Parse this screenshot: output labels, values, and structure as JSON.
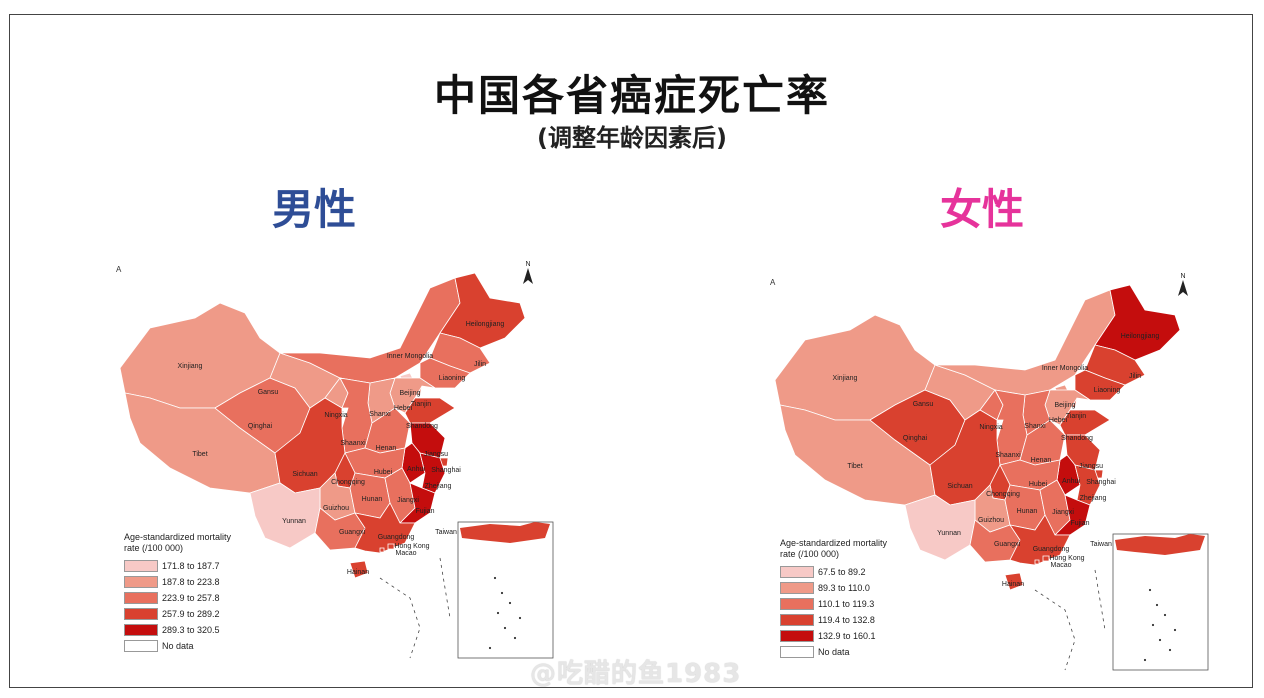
{
  "title": "中国各省癌症死亡率",
  "subtitle": "(调整年龄因素后)",
  "watermark": "@吃醋的鱼1983",
  "colors": {
    "male_heading": "#2e4d96",
    "female_heading": "#e6339b",
    "class1": "#f7c9c6",
    "class2": "#ef9a88",
    "class3": "#e8705e",
    "class4": "#d9412f",
    "class5": "#c40d0d",
    "nodata": "#ffffff"
  },
  "panels": [
    {
      "heading": "男性",
      "panel_letter": "A",
      "legend_title_line1": "Age-standardized mortality",
      "legend_title_line2": "rate (/100 000)",
      "legend": [
        "171.8 to 187.7",
        "187.8 to 223.8",
        "223.9 to 257.8",
        "257.9 to 289.2",
        "289.3 to 320.5",
        "No data"
      ],
      "regions": {
        "Xinjiang": 2,
        "Tibet": 2,
        "Qinghai": 3,
        "Gansu": 2,
        "Inner Mongolia": 3,
        "Heilongjiang": 4,
        "Jilin": 3,
        "Liaoning": 3,
        "Beijing": 1,
        "Tianjin": 2,
        "Hebei": 2,
        "Shanxi": 2,
        "Shaanxi": 3,
        "Ningxia": 2,
        "Henan": 3,
        "Shandong": 4,
        "Jiangsu": 5,
        "Anhui": 5,
        "Shanghai": 4,
        "Zhejiang": 5,
        "Hubei": 3,
        "Sichuan": 4,
        "Chongqing": 4,
        "Guizhou": 2,
        "Yunnan": 1,
        "Hunan": 3,
        "Jiangxi": 3,
        "Fujian": 5,
        "Guangxi": 3,
        "Guangdong": 4,
        "Hainan": 4,
        "Taiwan": 6,
        "Hong Kong": 4,
        "Macao": 4
      }
    },
    {
      "heading": "女性",
      "panel_letter": "A",
      "legend_title_line1": "Age-standardized mortality",
      "legend_title_line2": "rate (/100 000)",
      "legend": [
        "67.5 to 89.2",
        "89.3 to 110.0",
        "110.1 to 119.3",
        "119.4 to 132.8",
        "132.9 to 160.1",
        "No data"
      ],
      "regions": {
        "Xinjiang": 2,
        "Tibet": 2,
        "Qinghai": 4,
        "Gansu": 2,
        "Inner Mongolia": 2,
        "Heilongjiang": 5,
        "Jilin": 4,
        "Liaoning": 4,
        "Beijing": 2,
        "Tianjin": 3,
        "Hebei": 2,
        "Shanxi": 3,
        "Shaanxi": 3,
        "Ningxia": 3,
        "Henan": 3,
        "Shandong": 4,
        "Jiangsu": 4,
        "Anhui": 5,
        "Shanghai": 4,
        "Zhejiang": 4,
        "Hubei": 3,
        "Sichuan": 4,
        "Chongqing": 4,
        "Guizhou": 2,
        "Yunnan": 1,
        "Hunan": 3,
        "Jiangxi": 3,
        "Fujian": 5,
        "Guangxi": 3,
        "Guangdong": 4,
        "Hainan": 4,
        "Taiwan": 6,
        "Hong Kong": 4,
        "Macao": 4
      }
    }
  ]
}
